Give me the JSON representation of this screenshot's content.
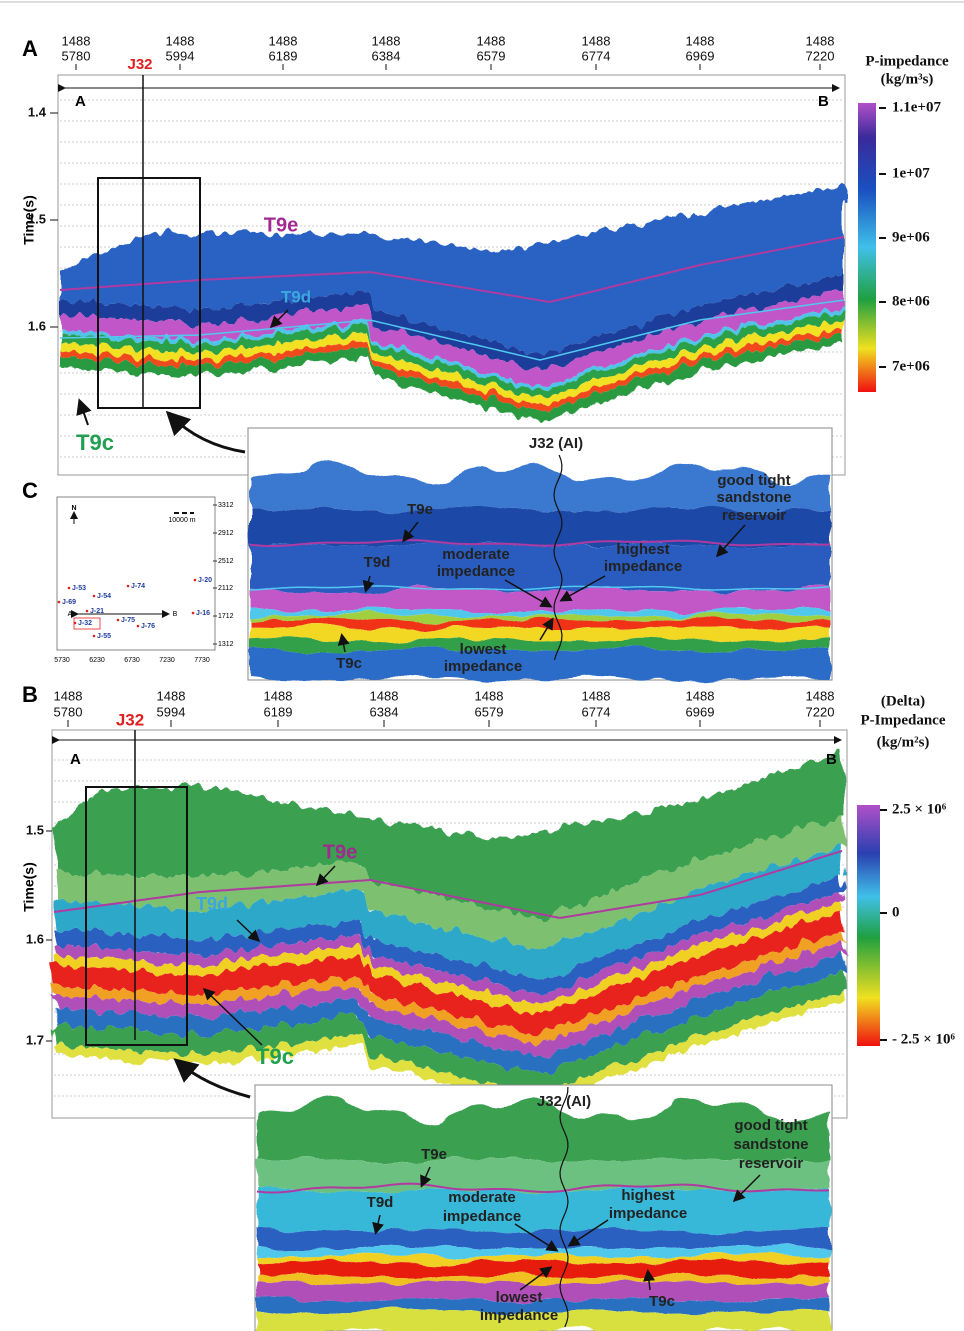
{
  "panel_a": {
    "label": "A",
    "traces": [
      [
        "1488",
        "5780"
      ],
      [
        "1488",
        "5994"
      ],
      [
        "1488",
        "6189"
      ],
      [
        "1488",
        "6384"
      ],
      [
        "1488",
        "6579"
      ],
      [
        "1488",
        "6774"
      ],
      [
        "1488",
        "6969"
      ],
      [
        "1488",
        "7220"
      ]
    ],
    "well": "J32",
    "line_start": "A",
    "line_end": "B",
    "y_title": "Time(s)",
    "y_ticks": [
      "1.4",
      "1.5",
      "1.6"
    ],
    "horizons": {
      "t9e": "T9e",
      "t9d": "T9d",
      "t9c": "T9c"
    },
    "colorbar": {
      "title": [
        "P-impedance",
        "(kg/m³s)"
      ],
      "ticks": [
        "1.1e+07",
        "1e+07",
        "9e+06",
        "8e+06",
        "7e+06"
      ]
    }
  },
  "panel_a_inset": {
    "well": "J32 (AI)",
    "t9e": "T9e",
    "t9d": "T9d",
    "t9c": "T9c",
    "reservoir": [
      "good tight",
      "sandstone",
      "reservoir"
    ],
    "moderate": [
      "moderate",
      "impedance"
    ],
    "highest": [
      "highest",
      "impedance"
    ],
    "lowest": [
      "lowest",
      "impedance"
    ]
  },
  "panel_c": {
    "label": "C",
    "north": "N",
    "scale": "10000 m",
    "line_start": "A",
    "line_end": "B",
    "x_ticks": [
      "5730",
      "6230",
      "6730",
      "7230",
      "7730"
    ],
    "y_ticks": [
      "3312",
      "2912",
      "2512",
      "2112",
      "1712",
      "1312"
    ],
    "wells": [
      "J-53",
      "J-74",
      "J-20",
      "J-69",
      "J-54",
      "J-21",
      "J-16",
      "J-32",
      "J-75",
      "J-76",
      "J-55"
    ]
  },
  "panel_b": {
    "label": "B",
    "traces": [
      [
        "1488",
        "5780"
      ],
      [
        "1488",
        "5994"
      ],
      [
        "1488",
        "6189"
      ],
      [
        "1488",
        "6384"
      ],
      [
        "1488",
        "6579"
      ],
      [
        "1488",
        "6774"
      ],
      [
        "1488",
        "6969"
      ],
      [
        "1488",
        "7220"
      ]
    ],
    "well": "J32",
    "line_start": "A",
    "line_end": "B",
    "y_title": "Time(s)",
    "y_ticks": [
      "1.5",
      "1.6",
      "1.7"
    ],
    "horizons": {
      "t9e": "T9e",
      "t9d": "T9d",
      "t9c": "T9c"
    },
    "colorbar": {
      "title": [
        "(Delta)",
        "P-Impedance",
        "(kg/m²s)"
      ],
      "ticks": [
        "2.5 × 10⁶",
        "0",
        "- 2.5 × 10⁶"
      ]
    }
  },
  "panel_b_inset": {
    "well": "J32 (AI)",
    "t9e": "T9e",
    "t9d": "T9d",
    "t9c": "T9c",
    "reservoir": [
      "good tight",
      "sandstone",
      "reservoir"
    ],
    "moderate": [
      "moderate",
      "impedance"
    ],
    "highest": [
      "highest",
      "impedance"
    ],
    "lowest": [
      "lowest",
      "impedance"
    ]
  }
}
